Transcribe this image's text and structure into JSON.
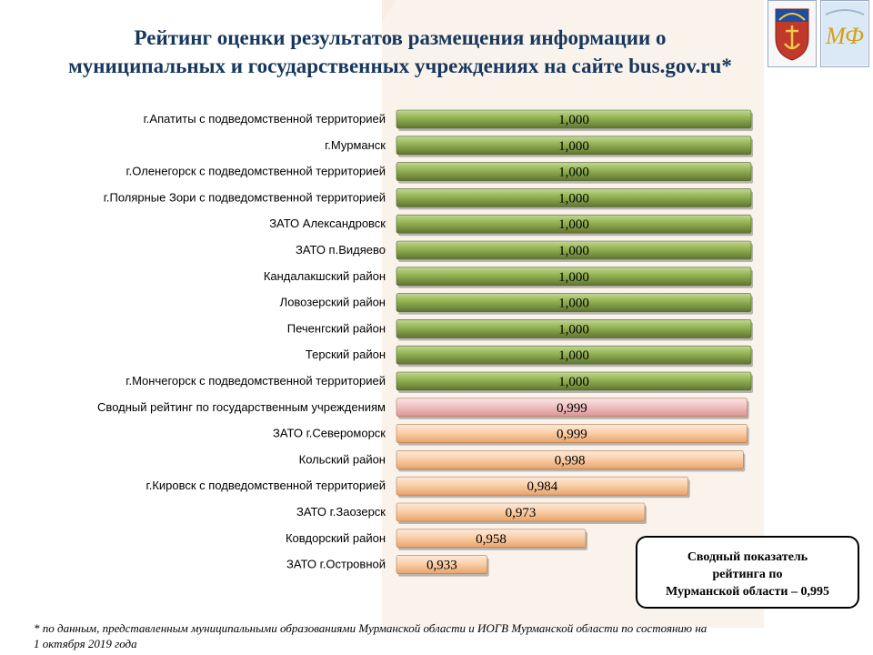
{
  "title": "Рейтинг оценки результатов  размещения  информации о муниципальных и государственных учреждениях на сайте bus.gov.ru*",
  "colors": {
    "green_bar": "#77933c",
    "pink_bar": "#e6b9b8",
    "orange_bar": "#fac090",
    "title": "#17375e",
    "wedge": "#f6e9dc"
  },
  "chart_data": {
    "type": "bar",
    "orientation": "horizontal",
    "categories": [
      "г.Апатиты с подведомственной территорией",
      "г.Мурманск",
      "г.Оленегорск с подведомственной территорией",
      "г.Полярные Зори с подведомственной территорией",
      "ЗАТО Александровск",
      "ЗАТО п.Видяево",
      "Кандалакшский район",
      "Ловозерский район",
      "Печенгский район",
      "Терский район",
      "г.Мончегорск с подведомственной территорией",
      "Сводный рейтинг по государственным учреждениям",
      "ЗАТО г.Североморск",
      "Кольский район",
      "г.Кировск с подведомственной территорией",
      "ЗАТО г.Заозерск",
      "Ковдорский район",
      "ЗАТО г.Островной"
    ],
    "values": [
      1.0,
      1.0,
      1.0,
      1.0,
      1.0,
      1.0,
      1.0,
      1.0,
      1.0,
      1.0,
      1.0,
      0.999,
      0.999,
      0.998,
      0.984,
      0.973,
      0.958,
      0.933
    ],
    "value_labels": [
      "1,000",
      "1,000",
      "1,000",
      "1,000",
      "1,000",
      "1,000",
      "1,000",
      "1,000",
      "1,000",
      "1,000",
      "1,000",
      "0,999",
      "0,999",
      "0,998",
      "0,984",
      "0,973",
      "0,958",
      "0,933"
    ],
    "bar_colors": [
      "green",
      "green",
      "green",
      "green",
      "green",
      "green",
      "green",
      "green",
      "green",
      "green",
      "green",
      "pink",
      "orange",
      "orange",
      "orange",
      "orange",
      "orange",
      "orange"
    ],
    "xlim": [
      0.91,
      1.0
    ],
    "grid": false,
    "legend": "none"
  },
  "summary": {
    "line1": "Сводный показатель",
    "line2": "рейтинга по",
    "line3": "Мурманской области – 0,995"
  },
  "footnote": {
    "line1": "* по данным, представленным  муниципальными образованиями Мурманской области и ИОГВ Мурманской области по состоянию на",
    "line2": "1 октября 2019 года"
  },
  "emblems": {
    "left_icon": "murmansk-coat-of-arms-icon",
    "right_icon": "mf-logo-icon",
    "right_text": "МФ"
  }
}
